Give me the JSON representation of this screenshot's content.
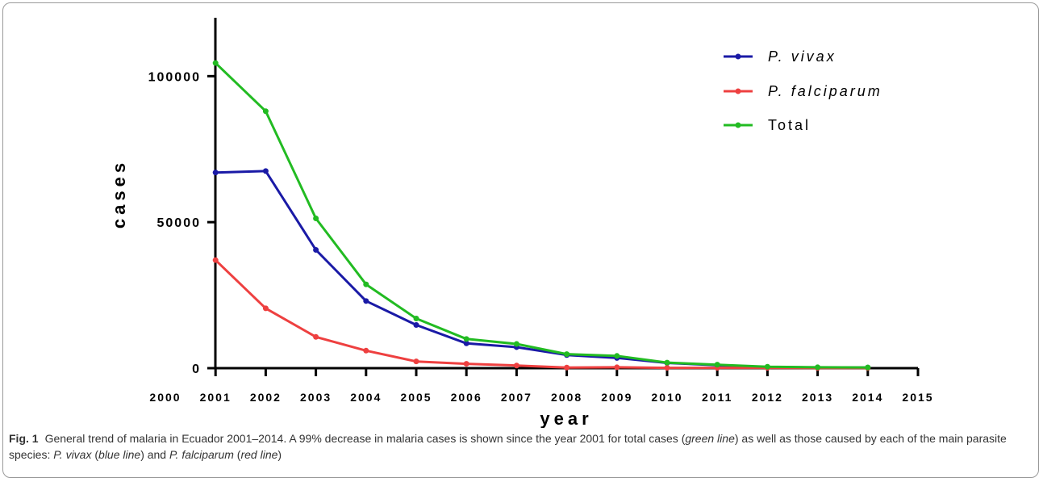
{
  "caption": {
    "label": "Fig. 1",
    "parts": [
      {
        "text": "General trend of malaria in Ecuador 2001–2014. A 99% decrease in malaria cases is shown since the year 2001 for total cases (",
        "italic": false
      },
      {
        "text": "green line",
        "italic": true
      },
      {
        "text": ") as well as those caused by each of the main parasite species: ",
        "italic": false
      },
      {
        "text": "P. vivax",
        "italic": true
      },
      {
        "text": " (",
        "italic": false
      },
      {
        "text": "blue line",
        "italic": true
      },
      {
        "text": ") and ",
        "italic": false
      },
      {
        "text": "P. falciparum",
        "italic": true
      },
      {
        "text": " (",
        "italic": false
      },
      {
        "text": "red line",
        "italic": true
      },
      {
        "text": ")",
        "italic": false
      }
    ]
  },
  "chart_data": {
    "type": "line",
    "title": "",
    "xlabel": "year",
    "ylabel": "cases",
    "xlim": [
      2000,
      2015
    ],
    "ylim": [
      0,
      120000
    ],
    "x_ticks": [
      2000,
      2001,
      2002,
      2003,
      2004,
      2005,
      2006,
      2007,
      2008,
      2009,
      2010,
      2011,
      2012,
      2013,
      2014,
      2015
    ],
    "y_ticks": [
      0,
      50000,
      100000
    ],
    "grid": false,
    "legend_position": "top-right",
    "x": [
      2001,
      2002,
      2003,
      2004,
      2005,
      2006,
      2007,
      2008,
      2009,
      2010,
      2011,
      2012,
      2013,
      2014
    ],
    "series": [
      {
        "name": "P. vivax",
        "italic": true,
        "color": "#1a1aa6",
        "values": [
          67000,
          67500,
          40500,
          23000,
          14800,
          8500,
          7200,
          4500,
          3500,
          1800,
          1000,
          400,
          250,
          200
        ]
      },
      {
        "name": "P. falciparum",
        "italic": true,
        "color": "#ee4040",
        "values": [
          37000,
          20500,
          10700,
          6000,
          2300,
          1500,
          900,
          200,
          300,
          100,
          100,
          100,
          50,
          50
        ]
      },
      {
        "name": "Total",
        "italic": false,
        "color": "#22bb22",
        "values": [
          104500,
          88000,
          51300,
          28700,
          17000,
          10000,
          8300,
          4800,
          4200,
          1900,
          1200,
          500,
          300,
          250
        ]
      }
    ]
  }
}
